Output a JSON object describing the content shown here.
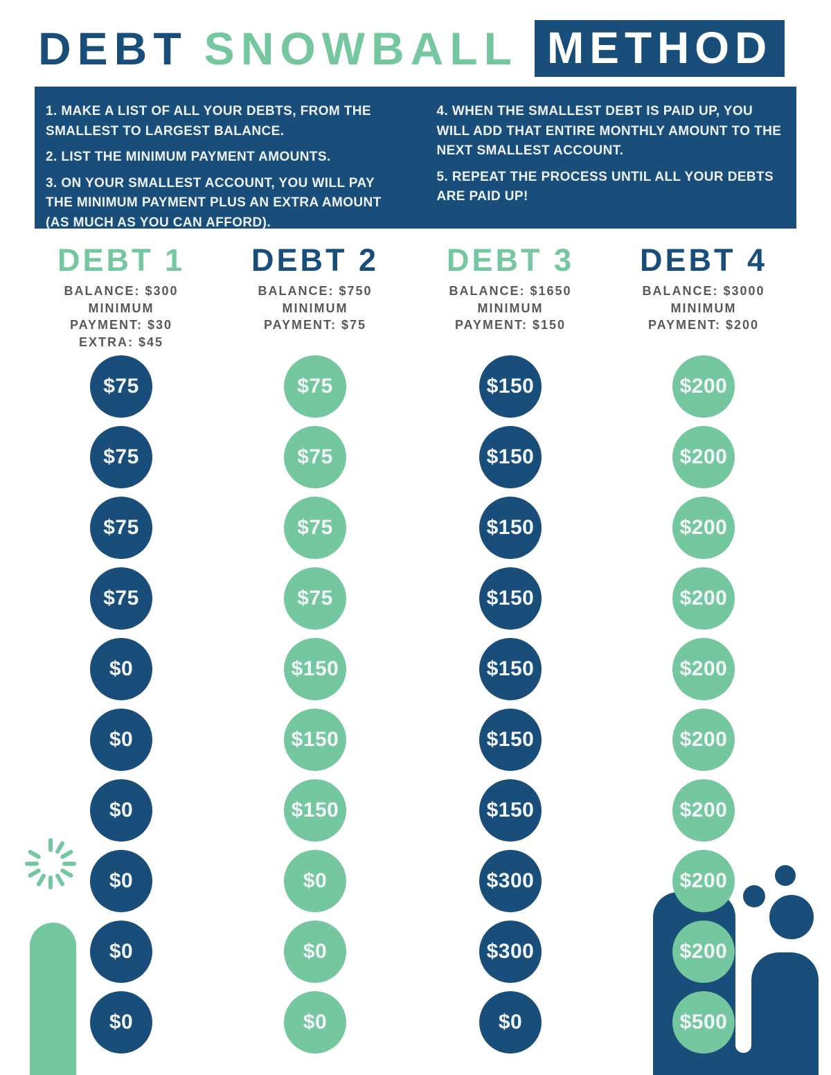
{
  "title": {
    "word1": "DEBT",
    "word2": "SNOWBALL",
    "word3": "METHOD"
  },
  "colors": {
    "navy": "#1a4e7a",
    "green": "#74c79f",
    "light_text": "#edf3f8",
    "detail_gray": "#57585a"
  },
  "instructions": {
    "left": [
      "1. MAKE A LIST OF ALL YOUR DEBTS, FROM THE SMALLEST TO LARGEST BALANCE.",
      "2. LIST THE MINIMUM PAYMENT AMOUNTS.",
      "3. ON YOUR SMALLEST ACCOUNT, YOU WILL PAY THE MINIMUM PAYMENT PLUS AN EXTRA AMOUNT (AS MUCH AS YOU CAN AFFORD)."
    ],
    "right": [
      "4. WHEN THE SMALLEST DEBT IS PAID UP, YOU WILL ADD THAT ENTIRE MONTHLY AMOUNT TO THE NEXT SMALLEST ACCOUNT.",
      "5. REPEAT THE PROCESS UNTIL ALL YOUR DEBTS ARE PAID UP!"
    ]
  },
  "columns": [
    {
      "name": "DEBT 1",
      "title_color": "green",
      "circle_color": "navy",
      "details": [
        "BALANCE: $300",
        "MINIMUM",
        "PAYMENT: $30",
        "EXTRA: $45"
      ],
      "payments": [
        "$75",
        "$75",
        "$75",
        "$75",
        "$0",
        "$0",
        "$0",
        "$0",
        "$0",
        "$0"
      ]
    },
    {
      "name": "DEBT 2",
      "title_color": "navy",
      "circle_color": "green",
      "details": [
        "BALANCE: $750",
        "MINIMUM",
        "PAYMENT: $75"
      ],
      "payments": [
        "$75",
        "$75",
        "$75",
        "$75",
        "$150",
        "$150",
        "$150",
        "$0",
        "$0",
        "$0"
      ]
    },
    {
      "name": "DEBT 3",
      "title_color": "green",
      "circle_color": "navy",
      "details": [
        "BALANCE: $1650",
        "MINIMUM",
        "PAYMENT: $150"
      ],
      "payments": [
        "$150",
        "$150",
        "$150",
        "$150",
        "$150",
        "$150",
        "$150",
        "$300",
        "$300",
        "$0"
      ]
    },
    {
      "name": "DEBT 4",
      "title_color": "navy",
      "circle_color": "green",
      "details": [
        "BALANCE: $3000",
        "MINIMUM",
        "PAYMENT: $200"
      ],
      "payments": [
        "$200",
        "$200",
        "$200",
        "$200",
        "$200",
        "$200",
        "$200",
        "$200",
        "$200",
        "$500"
      ]
    }
  ]
}
